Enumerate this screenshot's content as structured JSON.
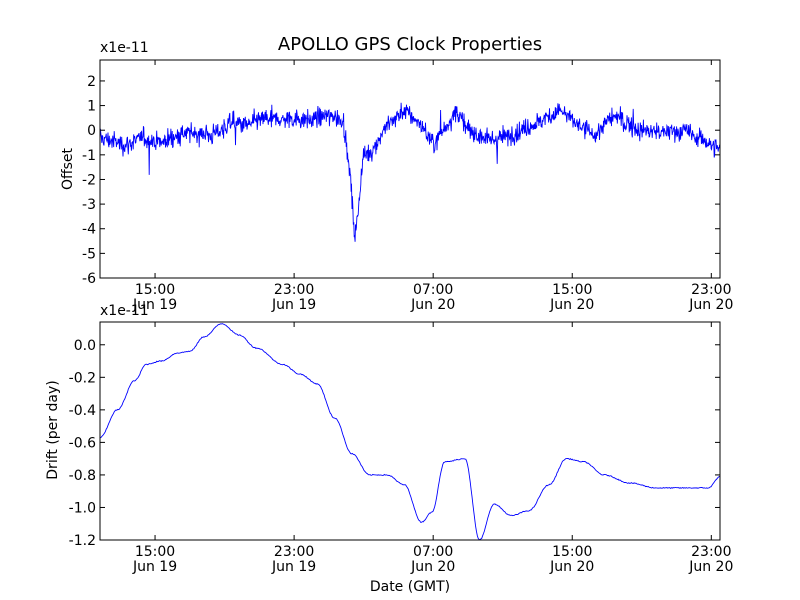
{
  "chart_data": [
    {
      "type": "line",
      "title": "APOLLO GPS Clock Properties",
      "xlabel": "",
      "ylabel": "Offset",
      "y_multiplier_label": "x1e-11",
      "y_ticks": [
        "2",
        "1",
        "0",
        "-1",
        "-2",
        "-3",
        "-4",
        "-5",
        "-6"
      ],
      "y_tick_values": [
        2,
        1,
        0,
        -1,
        -2,
        -3,
        -4,
        -5,
        -6
      ],
      "ylim": [
        -6,
        2.85
      ],
      "x_ticks": [
        {
          "time": "15:00",
          "date": "Jun 19"
        },
        {
          "time": "23:00",
          "date": "Jun 19"
        },
        {
          "time": "07:00",
          "date": "Jun 20"
        },
        {
          "time": "15:00",
          "date": "Jun 20"
        },
        {
          "time": "23:00",
          "date": "Jun 20"
        }
      ],
      "x_tick_values": [
        "2019-06-19 15:00",
        "2019-06-19 23:00",
        "2019-06-20 07:00",
        "2019-06-20 15:00",
        "2019-06-20 23:00"
      ],
      "xlim": [
        "2019-06-19 11:50",
        "2019-06-20 23:30"
      ],
      "grid": false,
      "line_color": "#0000ff",
      "series": [
        {
          "x": [
            "2019-06-19 11:50",
            "2019-06-19 13:20",
            "2019-06-19 14:20",
            "2019-06-19 15:20",
            "2019-06-19 16:20",
            "2019-06-19 17:20",
            "2019-06-19 18:20",
            "2019-06-19 19:20",
            "2019-06-19 20:20",
            "2019-06-19 21:20",
            "2019-06-19 22:20",
            "2019-06-19 23:00",
            "2019-06-19 23:50",
            "2019-06-20 00:50",
            "2019-06-20 01:50",
            "2019-06-20 02:15",
            "2019-06-20 02:30",
            "2019-06-20 03:00",
            "2019-06-20 03:30",
            "2019-06-20 04:20",
            "2019-06-20 05:20",
            "2019-06-20 06:20",
            "2019-06-20 07:00",
            "2019-06-20 08:20",
            "2019-06-20 09:00",
            "2019-06-20 10:20",
            "2019-06-20 11:50",
            "2019-06-20 13:30",
            "2019-06-20 14:20",
            "2019-06-20 15:20",
            "2019-06-20 16:20",
            "2019-06-20 17:20",
            "2019-06-20 18:50",
            "2019-06-20 20:20",
            "2019-06-20 21:20",
            "2019-06-20 22:20",
            "2019-06-20 23:30"
          ],
          "y": [
            -0.3,
            -0.6,
            -0.3,
            -0.5,
            -0.2,
            -0.1,
            -0.2,
            0.3,
            0.2,
            0.5,
            0.4,
            0.5,
            0.4,
            0.6,
            0.4,
            -2.0,
            -4.5,
            -1.0,
            -0.8,
            0.2,
            0.8,
            0.2,
            -0.6,
            0.8,
            0.0,
            -0.4,
            -0.1,
            0.5,
            0.8,
            0.2,
            -0.2,
            0.6,
            0.0,
            -0.1,
            0.0,
            -0.3,
            -0.8
          ]
        }
      ]
    },
    {
      "type": "line",
      "title": "",
      "xlabel": "Date (GMT)",
      "ylabel": "Drift (per day)",
      "y_multiplier_label": "x1e-11",
      "y_ticks": [
        "0.0",
        "-0.2",
        "-0.4",
        "-0.6",
        "-0.8",
        "-1.0",
        "-1.2"
      ],
      "y_tick_values": [
        0,
        -0.2,
        -0.4,
        -0.6,
        -0.8,
        -1.0,
        -1.2
      ],
      "ylim": [
        -1.2,
        0.14
      ],
      "x_ticks": [
        {
          "time": "15:00",
          "date": "Jun 19"
        },
        {
          "time": "23:00",
          "date": "Jun 19"
        },
        {
          "time": "07:00",
          "date": "Jun 20"
        },
        {
          "time": "15:00",
          "date": "Jun 20"
        },
        {
          "time": "23:00",
          "date": "Jun 20"
        }
      ],
      "x_tick_values": [
        "2019-06-19 15:00",
        "2019-06-19 23:00",
        "2019-06-20 07:00",
        "2019-06-20 15:00",
        "2019-06-20 23:00"
      ],
      "xlim": [
        "2019-06-19 11:50",
        "2019-06-20 23:30"
      ],
      "grid": false,
      "line_color": "#0000ff",
      "series": [
        {
          "x": [
            "2019-06-19 11:50",
            "2019-06-19 12:50",
            "2019-06-19 13:50",
            "2019-06-19 14:30",
            "2019-06-19 15:20",
            "2019-06-19 16:20",
            "2019-06-19 17:00",
            "2019-06-19 17:50",
            "2019-06-19 18:50",
            "2019-06-19 19:50",
            "2019-06-19 20:50",
            "2019-06-19 22:20",
            "2019-06-19 23:20",
            "2019-06-20 00:20",
            "2019-06-20 01:20",
            "2019-06-20 02:20",
            "2019-06-20 03:20",
            "2019-06-20 04:20",
            "2019-06-20 05:20",
            "2019-06-20 06:20",
            "2019-06-20 06:55",
            "2019-06-20 07:40",
            "2019-06-20 08:50",
            "2019-06-20 09:40",
            "2019-06-20 10:30",
            "2019-06-20 11:30",
            "2019-06-20 12:30",
            "2019-06-20 13:40",
            "2019-06-20 14:40",
            "2019-06-20 15:40",
            "2019-06-20 16:50",
            "2019-06-20 18:20",
            "2019-06-20 19:50",
            "2019-06-20 21:20",
            "2019-06-20 22:50",
            "2019-06-20 23:30"
          ],
          "y": [
            -0.57,
            -0.4,
            -0.22,
            -0.12,
            -0.1,
            -0.05,
            -0.04,
            0.05,
            0.13,
            0.06,
            -0.02,
            -0.12,
            -0.18,
            -0.24,
            -0.45,
            -0.67,
            -0.8,
            -0.8,
            -0.86,
            -1.09,
            -1.03,
            -0.72,
            -0.7,
            -1.2,
            -0.98,
            -1.05,
            -1.02,
            -0.86,
            -0.7,
            -0.72,
            -0.8,
            -0.85,
            -0.88,
            -0.88,
            -0.88,
            -0.81
          ]
        }
      ]
    }
  ]
}
